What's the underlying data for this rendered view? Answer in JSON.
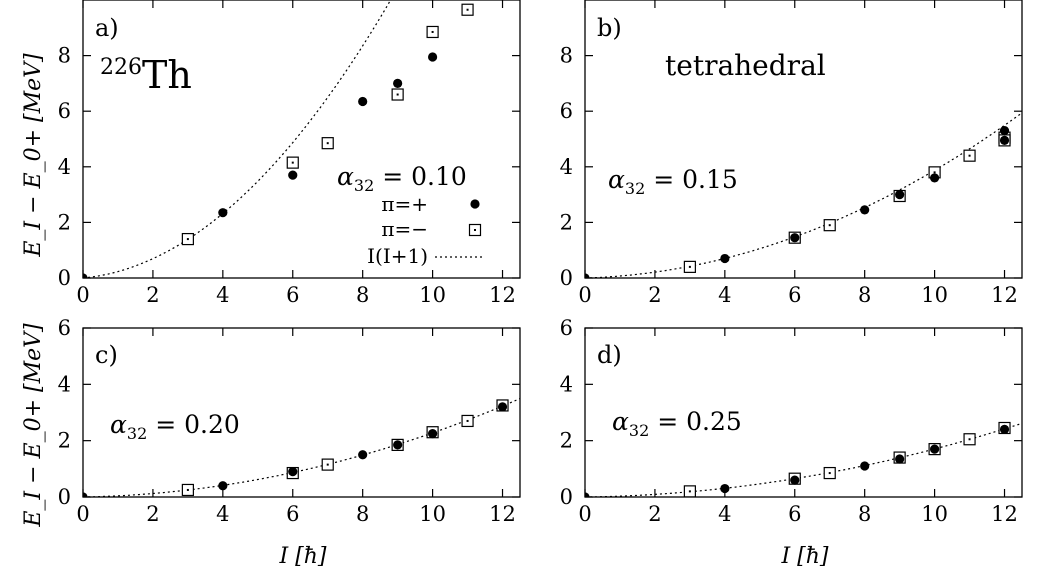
{
  "y_axis_label": {
    "top": "E_I − E_0+ [MeV]",
    "bottom": "E_I − E_0+ [MeV]"
  },
  "x_axis_label": {
    "left": "I [ħ]",
    "right": "I [ħ]"
  },
  "legend": {
    "pos_label": "π=+",
    "neg_label": "π=−",
    "fit_label": "I(I+1)"
  },
  "chart_data": [
    {
      "type": "scatter",
      "panel": "a)",
      "nucleus_label": "226Th",
      "alpha_label": "α32 = 0.10",
      "xlim": [
        0,
        12.5
      ],
      "ylim": [
        0,
        10
      ],
      "xticks": [
        0,
        2,
        4,
        6,
        8,
        10,
        12
      ],
      "yticks": [
        0,
        2,
        4,
        6,
        8
      ],
      "fit_coef": 0.116,
      "series": [
        {
          "name": "π=+",
          "marker": "filled-circle",
          "x": [
            0,
            4,
            6,
            8,
            9,
            10
          ],
          "y": [
            0,
            2.35,
            3.7,
            6.35,
            7.0,
            7.95
          ]
        },
        {
          "name": "π=−",
          "marker": "open-square",
          "x": [
            3,
            6,
            7,
            9,
            10,
            11
          ],
          "y": [
            1.4,
            4.15,
            4.85,
            6.6,
            8.85,
            9.65
          ]
        },
        {
          "name": "I(I+1)",
          "marker": "dotted-line"
        }
      ]
    },
    {
      "type": "scatter",
      "panel": "b)",
      "title": "tetrahedral",
      "alpha_label": "α32 = 0.15",
      "xlim": [
        0,
        12.5
      ],
      "ylim": [
        0,
        10
      ],
      "xticks": [
        0,
        2,
        4,
        6,
        8,
        10,
        12
      ],
      "yticks": [
        0,
        2,
        4,
        6,
        8
      ],
      "fit_coef": 0.0352,
      "series": [
        {
          "name": "π=+",
          "marker": "filled-circle",
          "x": [
            0,
            4,
            6,
            8,
            9,
            10,
            12,
            12
          ],
          "y": [
            0,
            0.7,
            1.45,
            2.45,
            3.0,
            3.6,
            5.3,
            4.95
          ]
        },
        {
          "name": "π=−",
          "marker": "open-square",
          "x": [
            3,
            6,
            7,
            9,
            10,
            11,
            12,
            12
          ],
          "y": [
            0.4,
            1.45,
            1.9,
            2.95,
            3.8,
            4.4,
            5.05,
            4.95
          ]
        },
        {
          "name": "I(I+1)",
          "marker": "dotted-line"
        }
      ]
    },
    {
      "type": "scatter",
      "panel": "c)",
      "alpha_label": "α32 = 0.20",
      "xlim": [
        0,
        12.5
      ],
      "ylim": [
        0,
        6
      ],
      "xticks": [
        0,
        2,
        4,
        6,
        8,
        10,
        12
      ],
      "yticks": [
        0,
        2,
        4,
        6
      ],
      "fit_coef": 0.0207,
      "series": [
        {
          "name": "π=+",
          "marker": "filled-circle",
          "x": [
            0,
            4,
            6,
            8,
            9,
            10,
            12
          ],
          "y": [
            0,
            0.4,
            0.9,
            1.5,
            1.85,
            2.25,
            3.2
          ]
        },
        {
          "name": "π=−",
          "marker": "open-square",
          "x": [
            3,
            6,
            7,
            9,
            10,
            11,
            12
          ],
          "y": [
            0.25,
            0.85,
            1.15,
            1.85,
            2.3,
            2.7,
            3.25
          ]
        },
        {
          "name": "I(I+1)",
          "marker": "dotted-line"
        }
      ]
    },
    {
      "type": "scatter",
      "panel": "d)",
      "alpha_label": "α32 = 0.25",
      "xlim": [
        0,
        12.5
      ],
      "ylim": [
        0,
        6
      ],
      "xticks": [
        0,
        2,
        4,
        6,
        8,
        10,
        12
      ],
      "yticks": [
        0,
        2,
        4,
        6
      ],
      "fit_coef": 0.0155,
      "series": [
        {
          "name": "π=+",
          "marker": "filled-circle",
          "x": [
            0,
            4,
            6,
            8,
            9,
            10,
            12
          ],
          "y": [
            0,
            0.3,
            0.6,
            1.1,
            1.35,
            1.7,
            2.4
          ]
        },
        {
          "name": "π=−",
          "marker": "open-square",
          "x": [
            3,
            6,
            7,
            9,
            10,
            11,
            12
          ],
          "y": [
            0.2,
            0.65,
            0.85,
            1.4,
            1.7,
            2.05,
            2.45
          ]
        },
        {
          "name": "I(I+1)",
          "marker": "dotted-line"
        }
      ]
    }
  ]
}
